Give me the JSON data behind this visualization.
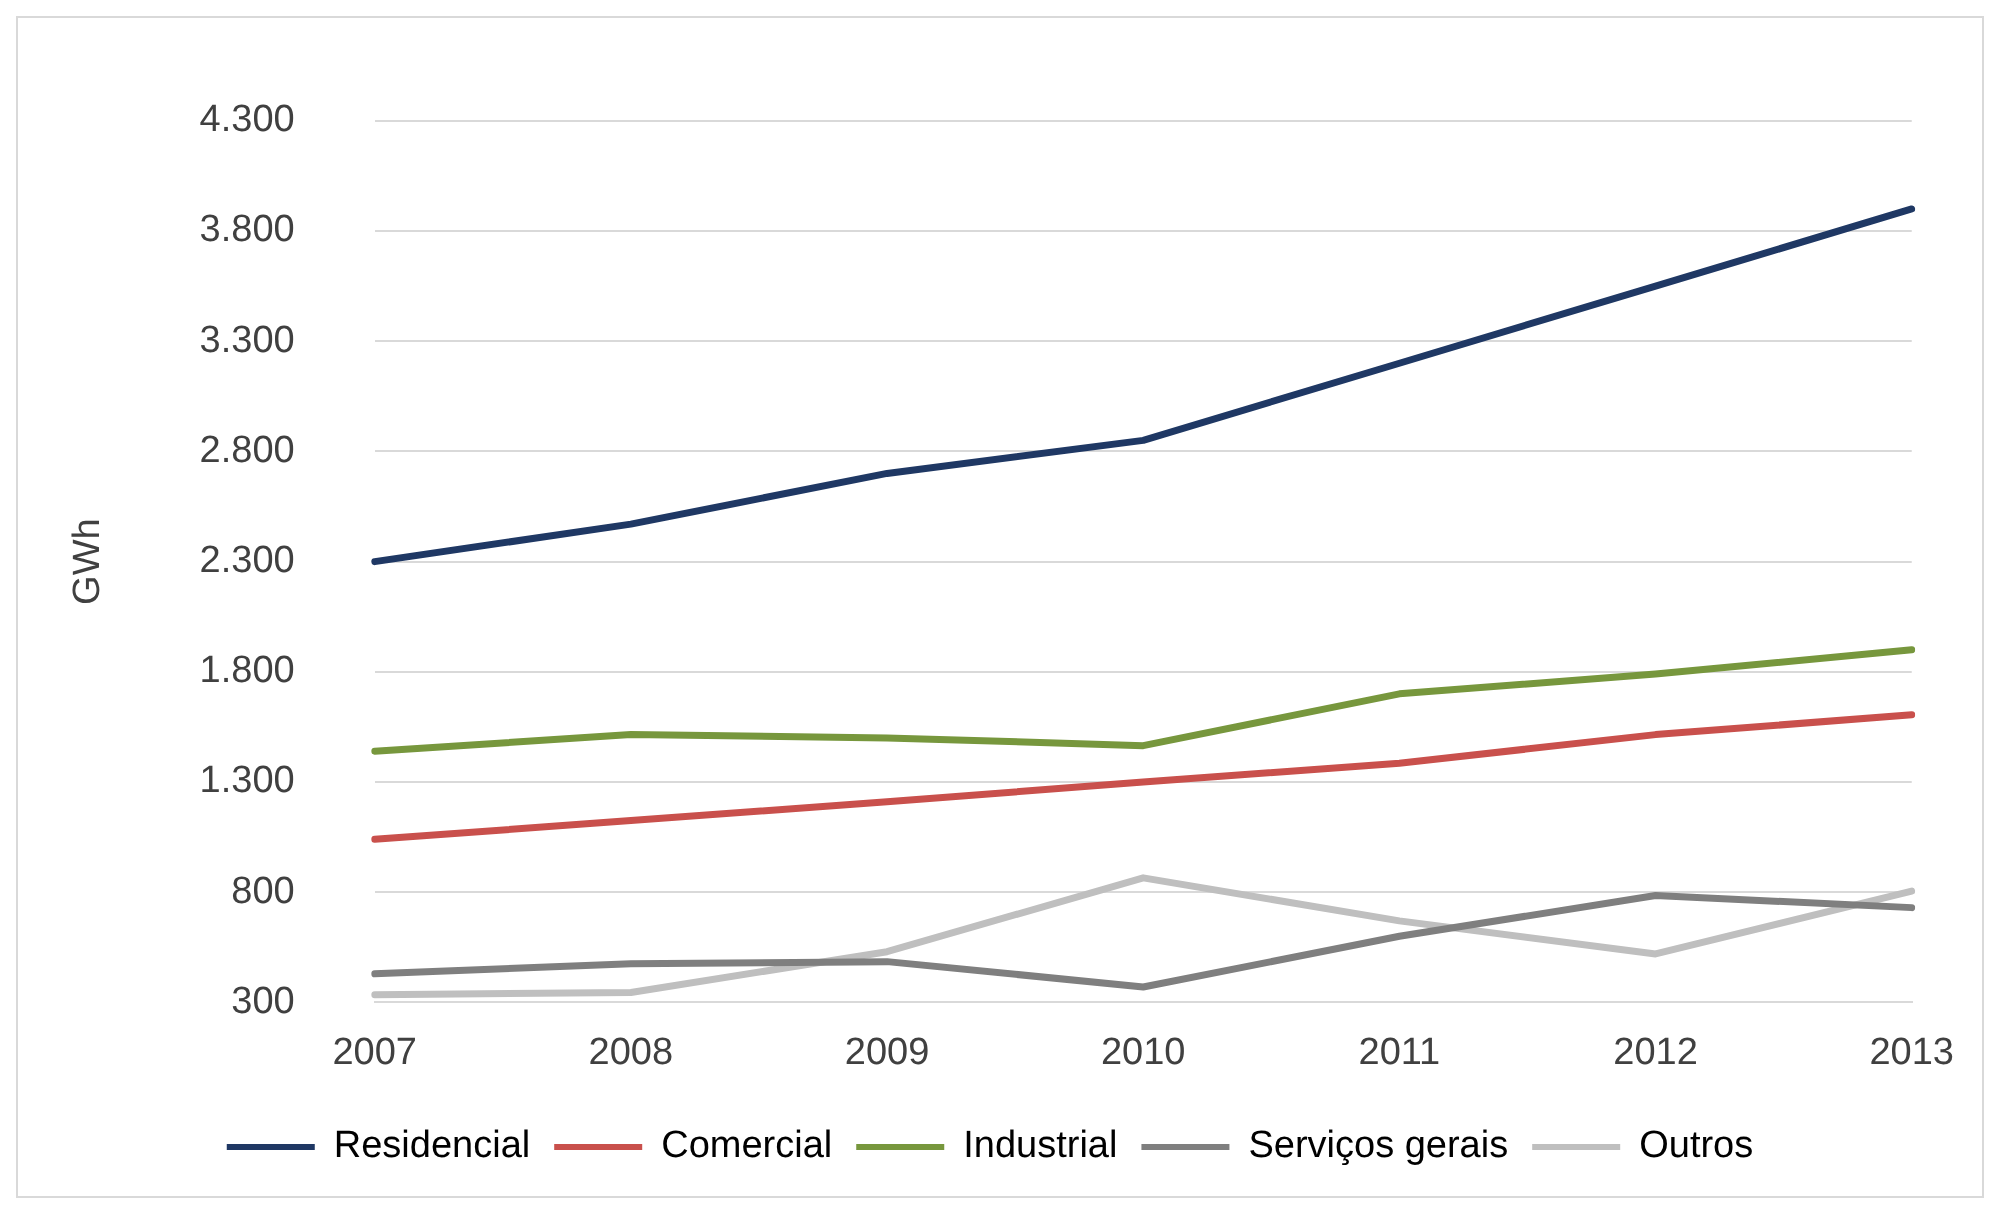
{
  "chart_data": {
    "type": "line",
    "ylabel": "GWh",
    "categories": [
      "2007",
      "2008",
      "2009",
      "2010",
      "2011",
      "2012",
      "2013"
    ],
    "series": [
      {
        "name": "Residencial",
        "color": "#1f3864",
        "values": [
          2300,
          2470,
          2700,
          2850,
          3200,
          3550,
          3900
        ]
      },
      {
        "name": "Comercial",
        "color": "#c9504c",
        "values": [
          1040,
          1125,
          1210,
          1300,
          1385,
          1515,
          1605
        ]
      },
      {
        "name": "Industrial",
        "color": "#77973d",
        "values": [
          1440,
          1515,
          1500,
          1465,
          1700,
          1790,
          1900
        ]
      },
      {
        "name": "Serviços gerais",
        "color": "#7f7f7f",
        "values": [
          430,
          475,
          485,
          370,
          600,
          785,
          730
        ]
      },
      {
        "name": "Outros",
        "color": "#bfbfbf",
        "values": [
          335,
          345,
          530,
          865,
          670,
          520,
          805
        ]
      }
    ],
    "ylim": [
      300,
      4300
    ],
    "yticks": [
      {
        "value": 300,
        "label": "300"
      },
      {
        "value": 800,
        "label": "800"
      },
      {
        "value": 1300,
        "label": "1.300"
      },
      {
        "value": 1800,
        "label": "1.800"
      },
      {
        "value": 2300,
        "label": "2.300"
      },
      {
        "value": 2800,
        "label": "2.800"
      },
      {
        "value": 3300,
        "label": "3.300"
      },
      {
        "value": 3800,
        "label": "3.800"
      },
      {
        "value": 4300,
        "label": "4.300"
      }
    ],
    "grid": "y",
    "legend": "bottom",
    "marker": "none",
    "line_style": "solid"
  }
}
